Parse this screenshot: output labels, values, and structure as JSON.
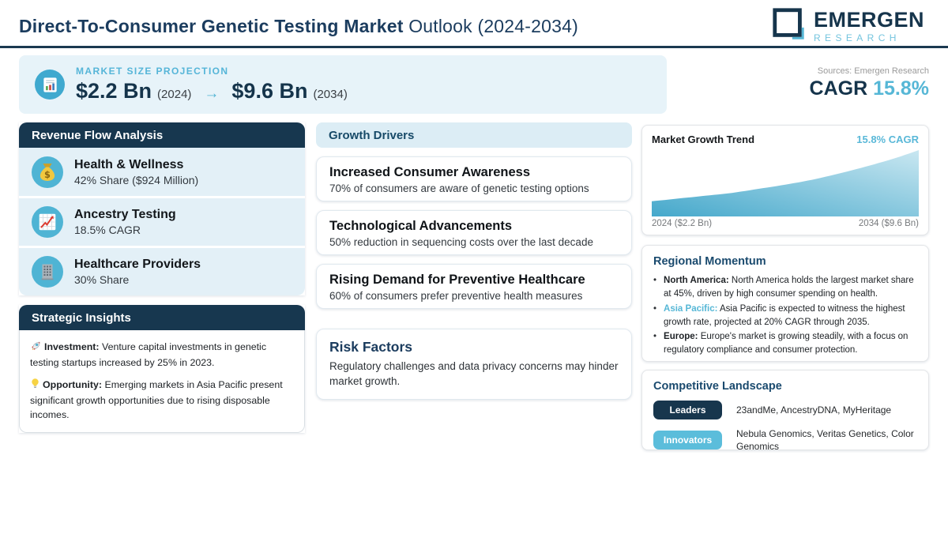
{
  "header": {
    "title_strong": "Direct-To-Consumer Genetic Testing Market",
    "title_rest": " Outlook (2024-2034)",
    "logo_line1": "EMERGEN",
    "logo_line2": "RESEARCH"
  },
  "banner": {
    "label": "MARKET SIZE PROJECTION",
    "start_value": "$2.2 Bn",
    "start_year": "(2024)",
    "arrow": "→",
    "end_value": "$9.6 Bn",
    "end_year": "(2034)",
    "icon": "bar-chart-document-icon"
  },
  "cagr": {
    "sources": "Sources: Emergen Research",
    "label": "CAGR",
    "value": "15.8%"
  },
  "revenue_flow": {
    "title": "Revenue Flow Analysis",
    "items": [
      {
        "icon": "money-bag-icon",
        "title": "Health & Wellness",
        "subtitle": "42% Share ($924 Million)"
      },
      {
        "icon": "chart-increasing-icon",
        "title": "Ancestry Testing",
        "subtitle": "18.5% CAGR"
      },
      {
        "icon": "office-building-icon",
        "title": "Healthcare Providers",
        "subtitle": "30% Share"
      }
    ]
  },
  "strategic_insights": {
    "title": "Strategic Insights",
    "items": [
      {
        "icon": "rocket-icon",
        "lead": "Investment:",
        "text": "Venture capital investments in genetic testing startups increased by 25% in 2023."
      },
      {
        "icon": "light-bulb-icon",
        "lead": "Opportunity:",
        "text": "Emerging markets in Asia Pacific present significant growth opportunities due to rising disposable incomes."
      }
    ]
  },
  "growth_drivers": {
    "title": "Growth Drivers",
    "items": [
      {
        "title": "Increased Consumer Awareness",
        "subtitle": "70% of consumers are aware of genetic testing options"
      },
      {
        "title": "Technological Advancements",
        "subtitle": "50% reduction in sequencing costs over the last decade"
      },
      {
        "title": "Rising Demand for Preventive Healthcare",
        "subtitle": "60% of consumers prefer preventive health measures"
      }
    ]
  },
  "risk_factors": {
    "title": "Risk Factors",
    "text": "Regulatory challenges and data privacy concerns may hinder market growth."
  },
  "market_trend": {
    "title": "Market Growth Trend",
    "cagr": "15.8% CAGR",
    "label_start": "2024 ($2.2 Bn)",
    "label_end": "2034 ($9.6 Bn)"
  },
  "chart_data": {
    "type": "area",
    "title": "Market Growth Trend",
    "x": [
      2024,
      2025,
      2026,
      2027,
      2028,
      2029,
      2030,
      2031,
      2032,
      2033,
      2034
    ],
    "values": [
      2.2,
      2.6,
      3.0,
      3.4,
      4.0,
      4.6,
      5.3,
      6.2,
      7.2,
      8.3,
      9.6
    ],
    "unit": "USD Bn",
    "cagr_pct": 15.8,
    "ylim": [
      0,
      9.6
    ],
    "xlabel": "",
    "ylabel": "",
    "grid": false,
    "fill_gradient": [
      "#45a8cb",
      "#c9e7f1"
    ]
  },
  "regional_momentum": {
    "title": "Regional Momentum",
    "items": [
      {
        "lead": "North America:",
        "lead_style": "dark",
        "text": "North America holds the largest market share at 45%, driven by high consumer spending on health."
      },
      {
        "lead": "Asia Pacific:",
        "lead_style": "teal",
        "text": "Asia Pacific is expected to witness the highest growth rate, projected at 20% CAGR through 2035."
      },
      {
        "lead": "Europe:",
        "lead_style": "dark",
        "text": "Europe's market is growing steadily, with a focus on regulatory compliance and consumer protection."
      }
    ]
  },
  "competitive_landscape": {
    "title": "Competitive Landscape",
    "rows": [
      {
        "badge": "Leaders",
        "style": "dark",
        "companies": "23andMe, AncestryDNA, MyHeritage"
      },
      {
        "badge": "Innovators",
        "style": "teal",
        "companies": "Nebula Genomics, Veritas Genetics, Color Genomics"
      }
    ]
  },
  "colors": {
    "navy": "#17374f",
    "teal_accent": "#56b7d6",
    "banner_bg": "#e7f3f9",
    "panel_bg": "#e3f0f7",
    "gd_header_bg": "#dcedf5"
  }
}
